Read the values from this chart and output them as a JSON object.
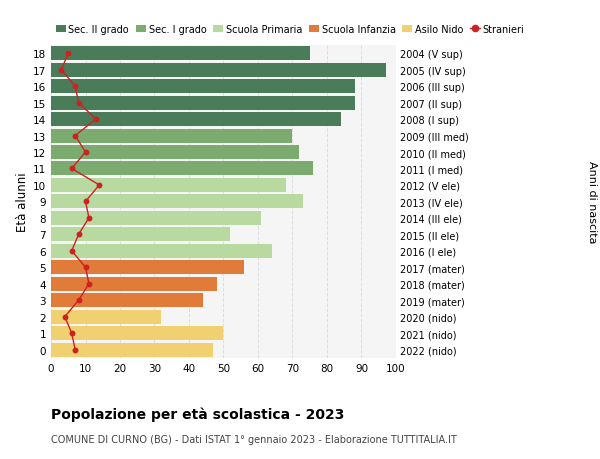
{
  "ages": [
    18,
    17,
    16,
    15,
    14,
    13,
    12,
    11,
    10,
    9,
    8,
    7,
    6,
    5,
    4,
    3,
    2,
    1,
    0
  ],
  "right_labels": [
    "2004 (V sup)",
    "2005 (IV sup)",
    "2006 (III sup)",
    "2007 (II sup)",
    "2008 (I sup)",
    "2009 (III med)",
    "2010 (II med)",
    "2011 (I med)",
    "2012 (V ele)",
    "2013 (IV ele)",
    "2014 (III ele)",
    "2015 (II ele)",
    "2016 (I ele)",
    "2017 (mater)",
    "2018 (mater)",
    "2019 (mater)",
    "2020 (nido)",
    "2021 (nido)",
    "2022 (nido)"
  ],
  "bar_values": [
    75,
    97,
    88,
    88,
    84,
    70,
    72,
    76,
    68,
    73,
    61,
    52,
    64,
    56,
    48,
    44,
    32,
    50,
    47
  ],
  "bar_colors": [
    "#4a7c59",
    "#4a7c59",
    "#4a7c59",
    "#4a7c59",
    "#4a7c59",
    "#7bab6e",
    "#7bab6e",
    "#7bab6e",
    "#b8d9a0",
    "#b8d9a0",
    "#b8d9a0",
    "#b8d9a0",
    "#b8d9a0",
    "#e07b39",
    "#e07b39",
    "#e07b39",
    "#f0d070",
    "#f0d070",
    "#f0d070"
  ],
  "stranieri_values": [
    5,
    3,
    7,
    8,
    13,
    7,
    10,
    6,
    14,
    10,
    11,
    8,
    6,
    10,
    11,
    8,
    4,
    6,
    7
  ],
  "xlim": [
    0,
    100
  ],
  "ylim": [
    -0.5,
    18.5
  ],
  "ylabel_left": "Età alunni",
  "ylabel_right": "Anni di nascita",
  "xticks": [
    0,
    10,
    20,
    30,
    40,
    50,
    60,
    70,
    80,
    90,
    100
  ],
  "title_bold": "Popolazione per età scolastica - 2023",
  "subtitle": "COMUNE DI CURNO (BG) - Dati ISTAT 1° gennaio 2023 - Elaborazione TUTTITALIA.IT",
  "legend_labels": [
    "Sec. II grado",
    "Sec. I grado",
    "Scuola Primaria",
    "Scuola Infanzia",
    "Asilo Nido",
    "Stranieri"
  ],
  "legend_colors": [
    "#4a7c59",
    "#7bab6e",
    "#b8d9a0",
    "#e07b39",
    "#f0d070",
    "#cc2222"
  ],
  "bar_height": 0.85,
  "bg_color": "#f5f5f5",
  "grid_color": "#dddddd",
  "stranieri_line_color": "#cc2222",
  "stranieri_dot_color": "#cc2222"
}
